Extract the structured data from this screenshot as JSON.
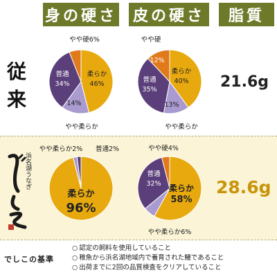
{
  "headers": {
    "skin_flesh": "身の硬さ",
    "skin": "皮の硬さ",
    "fat": "脂質"
  },
  "rows": {
    "conventional_label": "従\n来",
    "deshiko_brand": "浜名湖うなぎ でしこ"
  },
  "fat_values": {
    "conventional": "21.6g",
    "deshiko": "28.6g"
  },
  "colors": {
    "soft": "#e8a90e",
    "normal": "#5b3f7a",
    "slightly_soft": "#a99ad0",
    "slightly_hard": "#e07a1a",
    "header_green": "#6e7a2a",
    "accent_gold": "#c8950a"
  },
  "chart_data": [
    {
      "type": "pie",
      "row": "従来",
      "column": "身の硬さ",
      "slices": [
        {
          "label": "柔らか",
          "value": 46,
          "display": "46%"
        },
        {
          "label": "やや柔らか",
          "value": 14,
          "display": "14%"
        },
        {
          "label": "普通",
          "value": 34,
          "display": "34%"
        },
        {
          "label": "やや硬",
          "value": 6,
          "display": "6%"
        }
      ]
    },
    {
      "type": "pie",
      "row": "従来",
      "column": "皮の硬さ",
      "slices": [
        {
          "label": "柔らか",
          "value": 40,
          "display": "40%"
        },
        {
          "label": "やや柔らか",
          "value": 13,
          "display": "13%"
        },
        {
          "label": "普通",
          "value": 35,
          "display": "35%"
        },
        {
          "label": "やや硬",
          "value": 12,
          "display": "12%"
        }
      ]
    },
    {
      "type": "pie",
      "row": "でしこ",
      "column": "身の硬さ",
      "slices": [
        {
          "label": "柔らか",
          "value": 96,
          "display": "96%"
        },
        {
          "label": "やや柔らか",
          "value": 2,
          "display": "2%"
        },
        {
          "label": "普通",
          "value": 2,
          "display": "2%"
        }
      ]
    },
    {
      "type": "pie",
      "row": "でしこ",
      "column": "皮の硬さ",
      "slices": [
        {
          "label": "柔らか",
          "value": 58,
          "display": "58%"
        },
        {
          "label": "やや柔らか",
          "value": 6,
          "display": "6%"
        },
        {
          "label": "普通",
          "value": 32,
          "display": "32%"
        },
        {
          "label": "やや硬",
          "value": 4,
          "display": "4%"
        }
      ]
    }
  ],
  "standards": {
    "title": "でしこの基準",
    "items": [
      "認定の飼料を使用していること",
      "稚魚から浜名湖地域内で養育された鰻であること",
      "出荷までに2回の品質検査をクリアしていること"
    ]
  }
}
